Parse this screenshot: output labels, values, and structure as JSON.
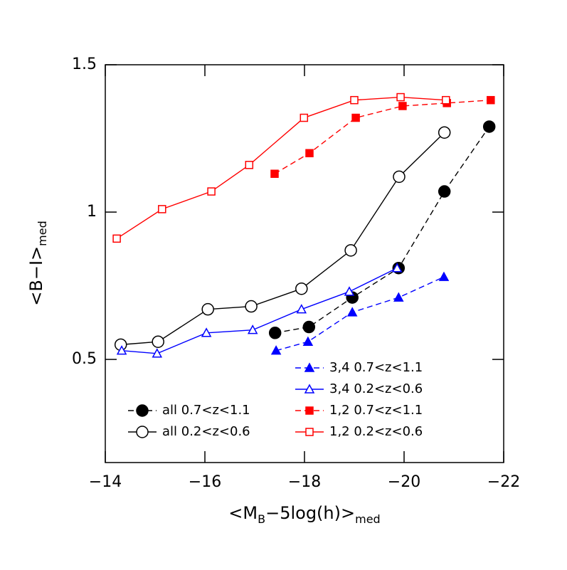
{
  "chart_data": {
    "type": "line",
    "xlabel": [
      "<M",
      "B",
      "−5log(h)>",
      "med"
    ],
    "ylabel": [
      "<B−I>",
      "med"
    ],
    "xlim": [
      -14,
      -22
    ],
    "ylim": [
      0.15,
      1.5
    ],
    "xticks": [
      {
        "value": -14,
        "label": "−14"
      },
      {
        "value": -16,
        "label": "−16"
      },
      {
        "value": -18,
        "label": "−18"
      },
      {
        "value": -20,
        "label": "−20"
      },
      {
        "value": -22,
        "label": "−22"
      }
    ],
    "yticks": [
      0.5,
      1,
      1.5
    ],
    "series": [
      {
        "name": "all 0.7<z<1.1",
        "color": "#000000",
        "marker": "circle",
        "filled": true,
        "dashed": true,
        "legend_loc": "lower center",
        "x": [
          -17.41,
          -18.09,
          -18.96,
          -19.89,
          -20.81,
          -21.71
        ],
        "values": [
          0.59,
          0.61,
          0.71,
          0.81,
          1.07,
          1.29
        ]
      },
      {
        "name": "all 0.2<z<0.6",
        "color": "#000000",
        "marker": "circle",
        "filled": false,
        "dashed": false,
        "legend_loc": "lower center",
        "x": [
          -14.31,
          -15.06,
          -16.06,
          -16.93,
          -17.94,
          -18.93,
          -19.9,
          -20.81
        ],
        "values": [
          0.55,
          0.56,
          0.67,
          0.68,
          0.74,
          0.87,
          1.12,
          1.27
        ]
      },
      {
        "name": "3,4 0.7<z<1.1",
        "color": "#0000ff",
        "marker": "triangle",
        "filled": true,
        "dashed": true,
        "legend_loc": "lower right",
        "x": [
          -17.43,
          -18.07,
          -18.96,
          -19.89,
          -20.8
        ],
        "values": [
          0.53,
          0.56,
          0.66,
          0.71,
          0.78
        ]
      },
      {
        "name": "3,4 0.2<z<0.6",
        "color": "#0000ff",
        "marker": "triangle",
        "filled": false,
        "dashed": false,
        "legend_loc": "lower right",
        "x": [
          -14.33,
          -15.04,
          -16.03,
          -16.96,
          -17.94,
          -18.9,
          -19.86
        ],
        "values": [
          0.53,
          0.52,
          0.59,
          0.6,
          0.67,
          0.73,
          0.81
        ]
      },
      {
        "name": "1,2 0.7<z<1.1",
        "color": "#ff0000",
        "marker": "square",
        "filled": true,
        "dashed": true,
        "legend_loc": "lower right",
        "x": [
          -17.4,
          -18.1,
          -19.03,
          -19.97,
          -20.86,
          -21.74
        ],
        "values": [
          1.13,
          1.2,
          1.32,
          1.36,
          1.37,
          1.38
        ]
      },
      {
        "name": "1,2 0.2<z<0.6",
        "color": "#ff0000",
        "marker": "square",
        "filled": false,
        "dashed": false,
        "legend_loc": "lower right",
        "x": [
          -14.23,
          -15.14,
          -16.13,
          -16.89,
          -17.99,
          -19.0,
          -19.93,
          -20.84
        ],
        "values": [
          0.91,
          1.01,
          1.07,
          1.16,
          1.32,
          1.38,
          1.39,
          1.38
        ]
      }
    ]
  }
}
